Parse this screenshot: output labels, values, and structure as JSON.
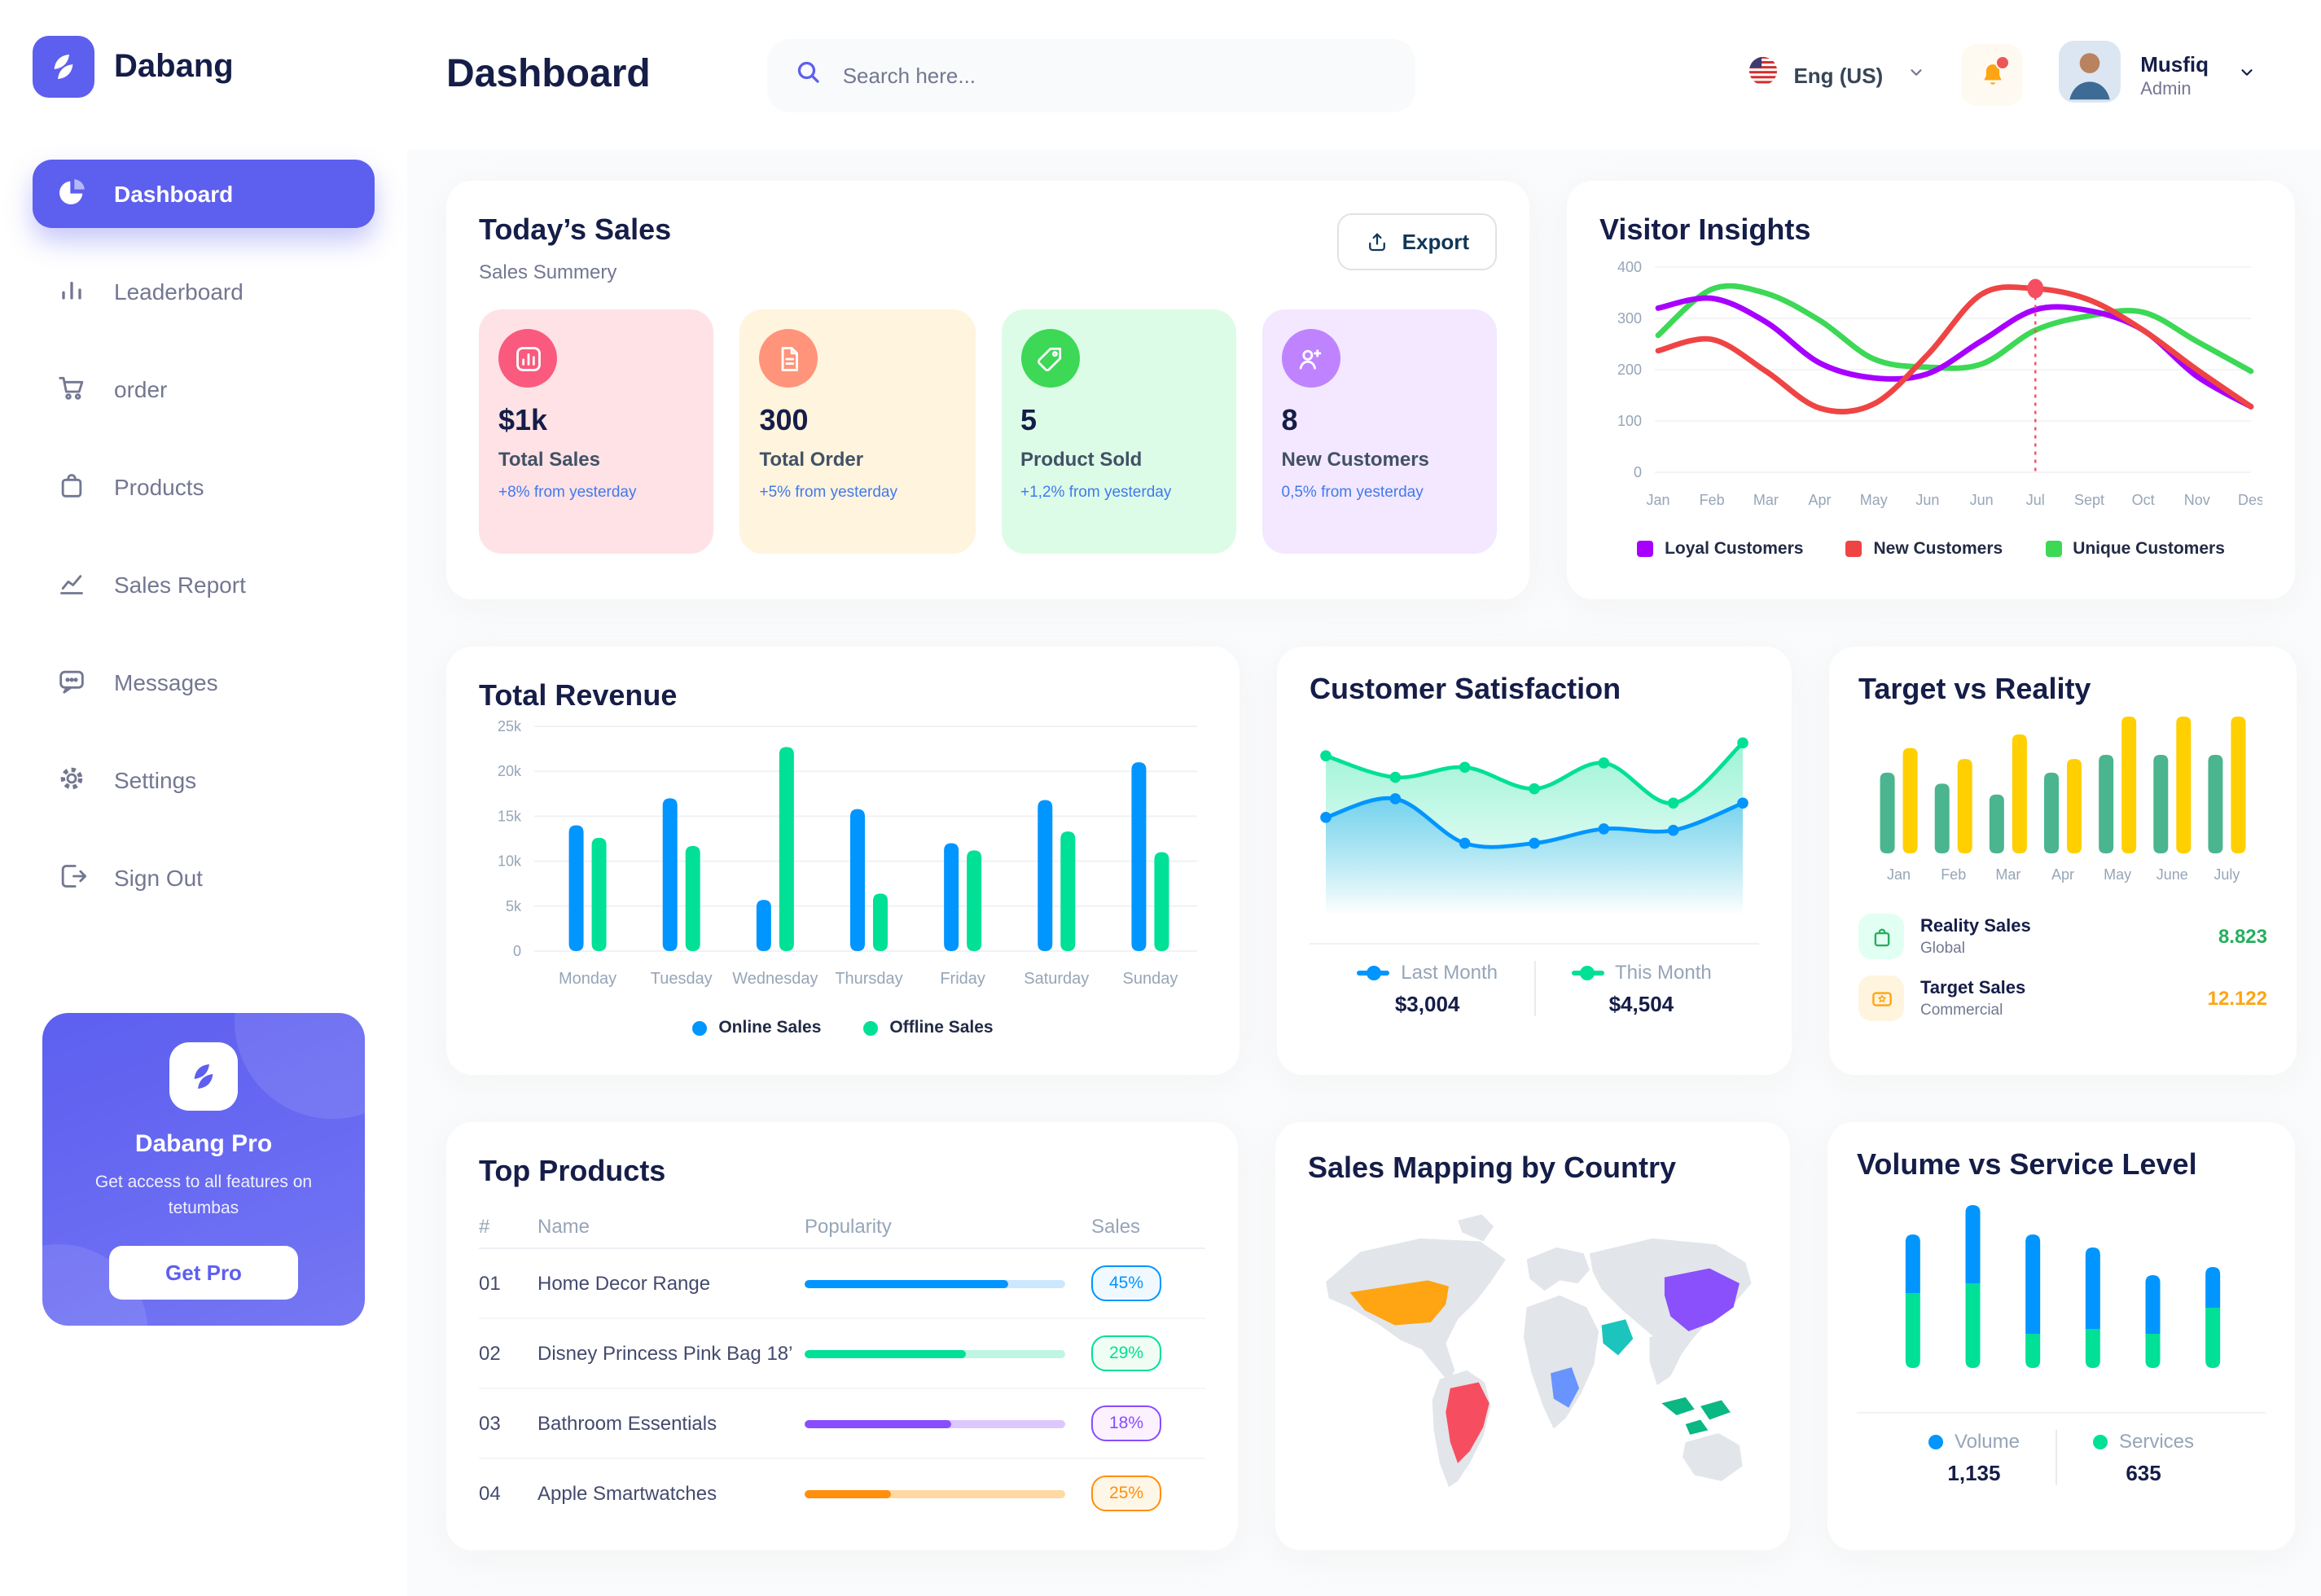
{
  "brand": {
    "name": "Dabang"
  },
  "header": {
    "title": "Dashboard",
    "search_placeholder": "Search here...",
    "language": "Eng (US)",
    "user_name": "Musfiq",
    "user_role": "Admin"
  },
  "sidebar": {
    "items": [
      {
        "label": "Dashboard"
      },
      {
        "label": "Leaderboard"
      },
      {
        "label": "order"
      },
      {
        "label": "Products"
      },
      {
        "label": "Sales Report"
      },
      {
        "label": "Messages"
      },
      {
        "label": "Settings"
      },
      {
        "label": "Sign Out"
      }
    ],
    "promo": {
      "title": "Dabang Pro",
      "description": "Get access to all features on tetumbas",
      "cta": "Get Pro"
    }
  },
  "todays_sales": {
    "title": "Today’s Sales",
    "subtitle": "Sales Summery",
    "export_label": "Export",
    "delta_color": "#4079ED",
    "stats": [
      {
        "value": "$1k",
        "label": "Total Sales",
        "delta": "+8% from yesterday",
        "bg": "#FFE2E5",
        "icon_bg": "#FA5A7D"
      },
      {
        "value": "300",
        "label": "Total Order",
        "delta": "+5% from yesterday",
        "bg": "#FFF4DE",
        "icon_bg": "#FF947A"
      },
      {
        "value": "5",
        "label": "Product Sold",
        "delta": "+1,2% from yesterday",
        "bg": "#DCFCE7",
        "icon_bg": "#3CD856"
      },
      {
        "value": "8",
        "label": "New Customers",
        "delta": "0,5% from yesterday",
        "bg": "#F3E8FF",
        "icon_bg": "#BF83FF"
      }
    ]
  },
  "chart_data": [
    {
      "id": "visitor_insights",
      "type": "line",
      "title": "Visitor Insights",
      "x_labels": [
        "Jan",
        "Feb",
        "Mar",
        "Apr",
        "May",
        "Jun",
        "Jun",
        "Jul",
        "Sept",
        "Oct",
        "Nov",
        "Des"
      ],
      "y_ticks": [
        0,
        100,
        200,
        300,
        400
      ],
      "ylim": [
        0,
        400
      ],
      "grid": true,
      "legend_position": "bottom",
      "series": [
        {
          "name": "Loyal Customers",
          "color": "#A700FF",
          "values": [
            320,
            339,
            293,
            213,
            184,
            192,
            256,
            317,
            315,
            277,
            187,
            128
          ]
        },
        {
          "name": "New Customers",
          "color": "#EF4444",
          "values": [
            237,
            259,
            197,
            125,
            133,
            229,
            347,
            358,
            336,
            277,
            200,
            128
          ]
        },
        {
          "name": "Unique Customers",
          "color": "#3CD856",
          "values": [
            267,
            357,
            349,
            296,
            221,
            205,
            211,
            277,
            305,
            312,
            255,
            197
          ]
        }
      ],
      "marker": {
        "series": "New Customers",
        "index": 7,
        "x_label": "Jul",
        "value": 358
      }
    },
    {
      "id": "total_revenue",
      "type": "bar",
      "title": "Total Revenue",
      "categories": [
        "Monday",
        "Tuesday",
        "Wednesday",
        "Thursday",
        "Friday",
        "Saturday",
        "Sunday"
      ],
      "y_tick_labels": [
        "0",
        "5k",
        "10k",
        "15k",
        "20k",
        "25k"
      ],
      "ylim": [
        0,
        25
      ],
      "unit": "thousands",
      "grid": true,
      "legend_position": "bottom",
      "series": [
        {
          "name": "Online Sales",
          "color": "#0095FF",
          "values": [
            14,
            17,
            5.7,
            15.8,
            12,
            16.8,
            21
          ]
        },
        {
          "name": "Offline Sales",
          "color": "#00E096",
          "values": [
            12.6,
            11.7,
            22.7,
            6.4,
            11.2,
            13.3,
            11
          ]
        }
      ]
    },
    {
      "id": "customer_satisfaction",
      "type": "area",
      "title": "Customer Satisfaction",
      "ylim": [
        0,
        100
      ],
      "legend_position": "bottom",
      "series": [
        {
          "name": "Last Month",
          "color": "#0095FF",
          "total": "$3,004",
          "values": [
            41,
            54,
            23,
            23,
            33,
            32,
            51
          ]
        },
        {
          "name": "This Month",
          "color": "#00E096",
          "total": "$4,504",
          "values": [
            84,
            69,
            76,
            61,
            79,
            51,
            93
          ]
        }
      ]
    },
    {
      "id": "target_vs_reality",
      "type": "bar",
      "title": "Target vs Reality",
      "categories": [
        "Jan",
        "Feb",
        "Mar",
        "Apr",
        "May",
        "June",
        "July"
      ],
      "ylim": [
        0,
        100
      ],
      "series": [
        {
          "name": "Reality Sales",
          "color": "#4AB58E",
          "values": [
            59,
            51,
            43,
            59,
            72,
            72,
            72
          ]
        },
        {
          "name": "Target Sales",
          "color": "#FFCF00",
          "values": [
            77,
            69,
            87,
            69,
            100,
            100,
            100
          ]
        }
      ],
      "legend": [
        {
          "label": "Reality Sales",
          "sublabel": "Global",
          "value": "8.823",
          "value_color": "#27AE60",
          "icon_bg": "#E2FFF3"
        },
        {
          "label": "Target Sales",
          "sublabel": "Commercial",
          "value": "12.122",
          "value_color": "#FFA412",
          "icon_bg": "#FFF4DE"
        }
      ]
    },
    {
      "id": "volume_vs_service_level",
      "type": "stacked-bar",
      "title": "Volume vs Service Level",
      "ylim": [
        0,
        100
      ],
      "legend_position": "bottom",
      "series": [
        {
          "name": "Volume",
          "color": "#0095FF",
          "total": "1,135",
          "values": [
            36,
            48,
            61,
            50,
            36,
            25
          ]
        },
        {
          "name": "Services",
          "color": "#00E096",
          "total": "635",
          "values": [
            46,
            52,
            21,
            24,
            21,
            37
          ]
        }
      ]
    }
  ],
  "top_products": {
    "title": "Top Products",
    "headers": [
      "#",
      "Name",
      "Popularity",
      "Sales"
    ],
    "rows": [
      {
        "num": "01",
        "name": "Home Decor Range",
        "popularity": 78,
        "sales": "45%",
        "color": "#0095FF",
        "track": "#CDE7FF",
        "badge_bg": "#F0F9FF"
      },
      {
        "num": "02",
        "name": "Disney Princess Pink Bag 18’",
        "popularity": 62,
        "sales": "29%",
        "color": "#00E096",
        "track": "#BFF5E2",
        "badge_bg": "#F0FDF4"
      },
      {
        "num": "03",
        "name": "Bathroom Essentials",
        "popularity": 56,
        "sales": "18%",
        "color": "#884DFF",
        "track": "#DCC8FF",
        "badge_bg": "#FBF1FF"
      },
      {
        "num": "04",
        "name": "Apple Smartwatches",
        "popularity": 33,
        "sales": "25%",
        "color": "#FF8F0D",
        "track": "#FFD9A3",
        "badge_bg": "#FEF6E6"
      }
    ]
  },
  "sales_map": {
    "title": "Sales Mapping by Country",
    "countries": [
      {
        "name": "United States",
        "color": "#FFA412"
      },
      {
        "name": "Brazil",
        "color": "#F64E60"
      },
      {
        "name": "China",
        "color": "#8950FC"
      },
      {
        "name": "Saudi Arabia",
        "color": "#1BC5BD"
      },
      {
        "name": "DR Congo",
        "color": "#6993FF"
      },
      {
        "name": "Indonesia",
        "color": "#0BB783"
      }
    ]
  }
}
